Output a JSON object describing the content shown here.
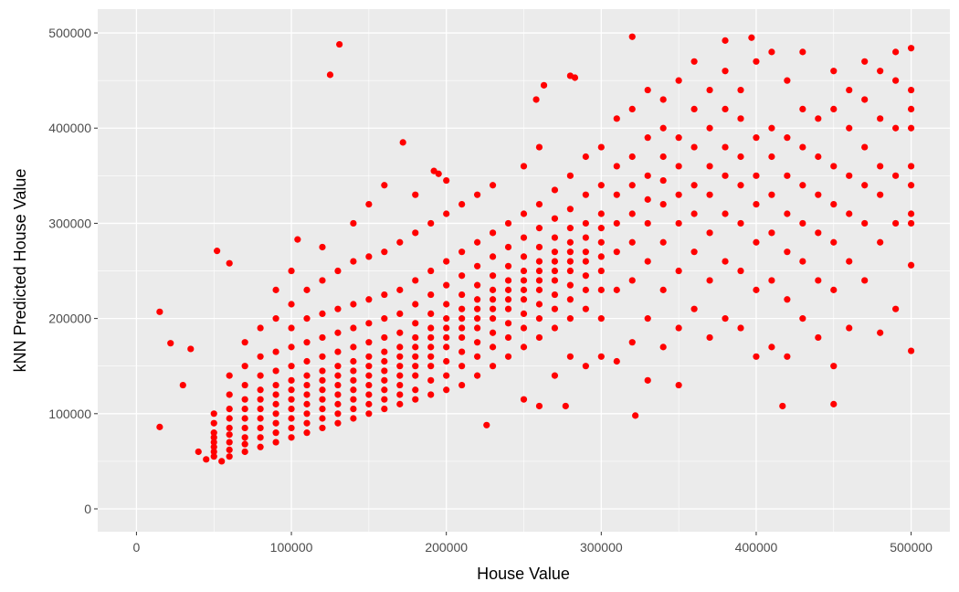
{
  "chart_data": {
    "type": "scatter",
    "title": "",
    "xlabel": "House Value",
    "ylabel": "kNN Predicted House Value",
    "xlim": [
      -25000,
      525000
    ],
    "ylim": [
      -24000,
      525000
    ],
    "xticks": [
      0,
      100000,
      200000,
      300000,
      400000,
      500000
    ],
    "yticks": [
      0,
      100000,
      200000,
      300000,
      400000,
      500000
    ],
    "xtick_labels": [
      "0",
      "100000",
      "200000",
      "300000",
      "400000",
      "500000"
    ],
    "ytick_labels": [
      "0",
      "100000",
      "200000",
      "300000",
      "400000",
      "500000"
    ],
    "grid": true,
    "legend": "none",
    "colors": {
      "point": "#FF0000",
      "panel": "#EBEBEB",
      "grid": "#FFFFFF"
    },
    "columns": [
      {
        "x": 50000,
        "y": [
          55000,
          60000,
          65000,
          70000,
          75000,
          80000,
          90000,
          100000
        ]
      },
      {
        "x": 60000,
        "y": [
          55000,
          62000,
          70000,
          78000,
          85000,
          95000,
          105000,
          120000,
          140000
        ]
      },
      {
        "x": 70000,
        "y": [
          60000,
          68000,
          75000,
          85000,
          95000,
          105000,
          115000,
          130000,
          150000,
          175000
        ]
      },
      {
        "x": 80000,
        "y": [
          65000,
          75000,
          85000,
          95000,
          105000,
          115000,
          125000,
          140000,
          160000,
          190000
        ]
      },
      {
        "x": 90000,
        "y": [
          70000,
          80000,
          90000,
          100000,
          110000,
          120000,
          130000,
          145000,
          165000,
          200000,
          230000
        ]
      },
      {
        "x": 100000,
        "y": [
          75000,
          85000,
          95000,
          105000,
          115000,
          125000,
          135000,
          150000,
          170000,
          190000,
          215000,
          250000
        ]
      },
      {
        "x": 110000,
        "y": [
          80000,
          90000,
          100000,
          110000,
          120000,
          130000,
          140000,
          155000,
          175000,
          200000,
          230000
        ]
      },
      {
        "x": 120000,
        "y": [
          85000,
          95000,
          105000,
          115000,
          125000,
          135000,
          145000,
          160000,
          180000,
          205000,
          240000,
          275000
        ]
      },
      {
        "x": 130000,
        "y": [
          90000,
          100000,
          110000,
          120000,
          130000,
          140000,
          150000,
          165000,
          185000,
          210000,
          250000
        ]
      },
      {
        "x": 140000,
        "y": [
          95000,
          105000,
          115000,
          125000,
          135000,
          145000,
          155000,
          170000,
          190000,
          215000,
          260000,
          300000
        ]
      },
      {
        "x": 150000,
        "y": [
          100000,
          110000,
          120000,
          130000,
          140000,
          150000,
          160000,
          175000,
          195000,
          220000,
          265000,
          320000
        ]
      },
      {
        "x": 160000,
        "y": [
          105000,
          115000,
          125000,
          135000,
          145000,
          155000,
          165000,
          180000,
          200000,
          225000,
          270000,
          340000
        ]
      },
      {
        "x": 170000,
        "y": [
          110000,
          120000,
          130000,
          140000,
          150000,
          160000,
          170000,
          185000,
          205000,
          230000,
          280000
        ]
      },
      {
        "x": 180000,
        "y": [
          115000,
          125000,
          140000,
          150000,
          160000,
          170000,
          180000,
          195000,
          215000,
          240000,
          290000,
          330000
        ]
      },
      {
        "x": 190000,
        "y": [
          120000,
          135000,
          150000,
          160000,
          170000,
          180000,
          190000,
          205000,
          225000,
          250000,
          300000
        ]
      },
      {
        "x": 200000,
        "y": [
          125000,
          140000,
          155000,
          170000,
          180000,
          190000,
          200000,
          215000,
          235000,
          260000,
          310000,
          345000
        ]
      },
      {
        "x": 210000,
        "y": [
          130000,
          150000,
          165000,
          180000,
          190000,
          200000,
          210000,
          225000,
          245000,
          270000,
          320000
        ]
      },
      {
        "x": 220000,
        "y": [
          140000,
          160000,
          175000,
          190000,
          200000,
          210000,
          220000,
          235000,
          255000,
          280000,
          330000
        ]
      },
      {
        "x": 230000,
        "y": [
          150000,
          170000,
          185000,
          200000,
          210000,
          220000,
          230000,
          245000,
          265000,
          290000,
          340000
        ]
      },
      {
        "x": 240000,
        "y": [
          160000,
          180000,
          195000,
          210000,
          220000,
          230000,
          240000,
          255000,
          275000,
          300000
        ]
      },
      {
        "x": 250000,
        "y": [
          115000,
          170000,
          190000,
          205000,
          220000,
          230000,
          240000,
          250000,
          265000,
          285000,
          310000,
          360000
        ]
      },
      {
        "x": 260000,
        "y": [
          180000,
          200000,
          215000,
          230000,
          240000,
          250000,
          260000,
          275000,
          295000,
          320000,
          380000
        ]
      },
      {
        "x": 270000,
        "y": [
          140000,
          190000,
          210000,
          225000,
          240000,
          250000,
          260000,
          270000,
          285000,
          305000,
          335000
        ]
      },
      {
        "x": 280000,
        "y": [
          160000,
          200000,
          220000,
          235000,
          250000,
          260000,
          270000,
          280000,
          295000,
          315000,
          350000
        ]
      },
      {
        "x": 290000,
        "y": [
          150000,
          210000,
          230000,
          245000,
          260000,
          270000,
          285000,
          300000,
          330000,
          370000
        ]
      },
      {
        "x": 300000,
        "y": [
          160000,
          200000,
          230000,
          250000,
          265000,
          280000,
          295000,
          310000,
          340000,
          380000
        ]
      },
      {
        "x": 310000,
        "y": [
          155000,
          230000,
          270000,
          300000,
          330000,
          360000,
          410000
        ]
      },
      {
        "x": 320000,
        "y": [
          175000,
          240000,
          280000,
          310000,
          340000,
          370000,
          420000
        ]
      },
      {
        "x": 330000,
        "y": [
          135000,
          200000,
          260000,
          300000,
          325000,
          350000,
          390000,
          440000
        ]
      },
      {
        "x": 340000,
        "y": [
          170000,
          230000,
          280000,
          320000,
          345000,
          370000,
          400000,
          430000
        ]
      },
      {
        "x": 350000,
        "y": [
          130000,
          190000,
          250000,
          300000,
          330000,
          360000,
          390000,
          450000
        ]
      },
      {
        "x": 360000,
        "y": [
          210000,
          270000,
          310000,
          340000,
          380000,
          420000,
          470000
        ]
      },
      {
        "x": 370000,
        "y": [
          180000,
          240000,
          290000,
          330000,
          360000,
          400000,
          440000
        ]
      },
      {
        "x": 380000,
        "y": [
          200000,
          260000,
          310000,
          350000,
          380000,
          420000,
          460000
        ]
      },
      {
        "x": 390000,
        "y": [
          190000,
          250000,
          300000,
          340000,
          370000,
          410000,
          440000
        ]
      },
      {
        "x": 400000,
        "y": [
          160000,
          230000,
          280000,
          320000,
          350000,
          390000,
          470000
        ]
      },
      {
        "x": 410000,
        "y": [
          170000,
          240000,
          290000,
          330000,
          370000,
          400000,
          480000
        ]
      },
      {
        "x": 420000,
        "y": [
          160000,
          220000,
          270000,
          310000,
          350000,
          390000,
          450000
        ]
      },
      {
        "x": 430000,
        "y": [
          200000,
          260000,
          300000,
          340000,
          380000,
          420000,
          480000
        ]
      },
      {
        "x": 440000,
        "y": [
          180000,
          240000,
          290000,
          330000,
          370000,
          410000
        ]
      },
      {
        "x": 450000,
        "y": [
          150000,
          230000,
          280000,
          320000,
          360000,
          420000,
          460000
        ]
      },
      {
        "x": 460000,
        "y": [
          190000,
          260000,
          310000,
          350000,
          400000,
          440000
        ]
      },
      {
        "x": 470000,
        "y": [
          240000,
          300000,
          340000,
          380000,
          430000,
          470000
        ]
      },
      {
        "x": 480000,
        "y": [
          185000,
          280000,
          330000,
          360000,
          410000,
          460000
        ]
      },
      {
        "x": 490000,
        "y": [
          210000,
          300000,
          350000,
          400000,
          450000,
          480000
        ]
      },
      {
        "x": 500000,
        "y": [
          300000,
          310000,
          340000,
          360000,
          400000,
          420000,
          440000,
          484000
        ]
      }
    ],
    "extra_points": [
      [
        15000,
        207000
      ],
      [
        15000,
        86000
      ],
      [
        22000,
        174000
      ],
      [
        125000,
        456000
      ],
      [
        131000,
        488000
      ],
      [
        320000,
        496000
      ],
      [
        397000,
        495000
      ],
      [
        380000,
        492000
      ],
      [
        500000,
        166000
      ],
      [
        500000,
        256000
      ],
      [
        450000,
        110000
      ],
      [
        417000,
        108000
      ],
      [
        322000,
        98000
      ],
      [
        52000,
        271000
      ],
      [
        60000,
        258000
      ],
      [
        104000,
        283000
      ],
      [
        195000,
        352000
      ],
      [
        192000,
        355000
      ],
      [
        172000,
        385000
      ],
      [
        258000,
        430000
      ],
      [
        263000,
        445000
      ],
      [
        280000,
        455000
      ],
      [
        283000,
        453000
      ],
      [
        226000,
        88000
      ],
      [
        260000,
        108000
      ],
      [
        277000,
        108000
      ],
      [
        35000,
        168000
      ],
      [
        30000,
        130000
      ],
      [
        40000,
        60000
      ],
      [
        45000,
        52000
      ],
      [
        55000,
        50000
      ]
    ]
  }
}
